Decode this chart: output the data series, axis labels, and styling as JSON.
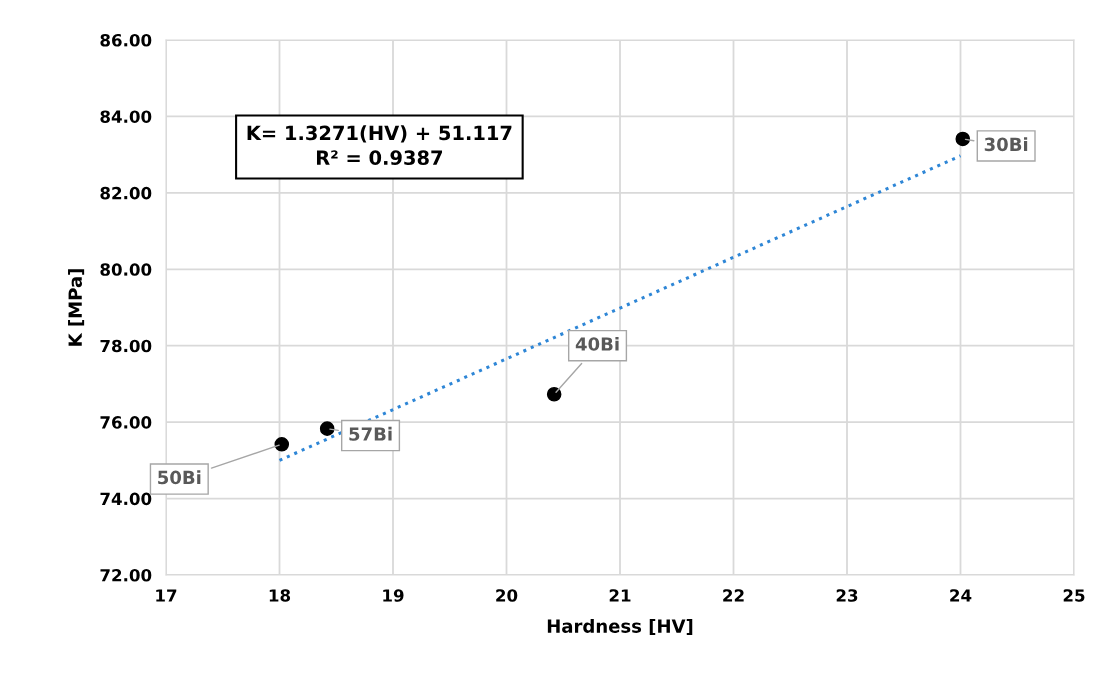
{
  "chart_data": {
    "type": "scatter",
    "xlabel": "Hardness [HV]",
    "ylabel": "K [MPa]",
    "x": [
      18.02,
      18.42,
      20.42,
      24.02
    ],
    "series": [
      {
        "color": "#000000",
        "values": [
          75.42,
          75.83,
          76.73,
          83.41
        ],
        "marker": "circle"
      },
      {
        "type": "line",
        "color": "#2e86d6",
        "x": [
          18,
          24
        ],
        "values": [
          75.0,
          82.97
        ],
        "line_style": "dotted",
        "marker": "none"
      }
    ],
    "annotations": [
      {
        "text": "50Bi",
        "x": 18.02,
        "y": 75.42
      },
      {
        "text": "57Bi",
        "x": 18.42,
        "y": 75.83
      },
      {
        "text": "40Bi",
        "x": 20.42,
        "y": 76.73
      },
      {
        "text": "30Bi",
        "x": 24.02,
        "y": 83.41
      },
      "K= 1.3271(HV) + 51.117\nR² = 0.9387"
    ],
    "xlim": [
      17,
      25
    ],
    "xticks": [
      17,
      18,
      19,
      20,
      21,
      22,
      23,
      24,
      25
    ],
    "ylim": [
      72,
      86
    ],
    "yticks": [
      {
        "value": 72,
        "label": "72.00"
      },
      {
        "value": 74,
        "label": "74.00"
      },
      {
        "value": 76,
        "label": "76.00"
      },
      {
        "value": 78,
        "label": "78.00"
      },
      {
        "value": 80,
        "label": "80.00"
      },
      {
        "value": 82,
        "label": "82.00"
      },
      {
        "value": 84,
        "label": "84.00"
      },
      {
        "value": 86,
        "label": "86.00"
      }
    ],
    "grid": true,
    "legend": false
  }
}
